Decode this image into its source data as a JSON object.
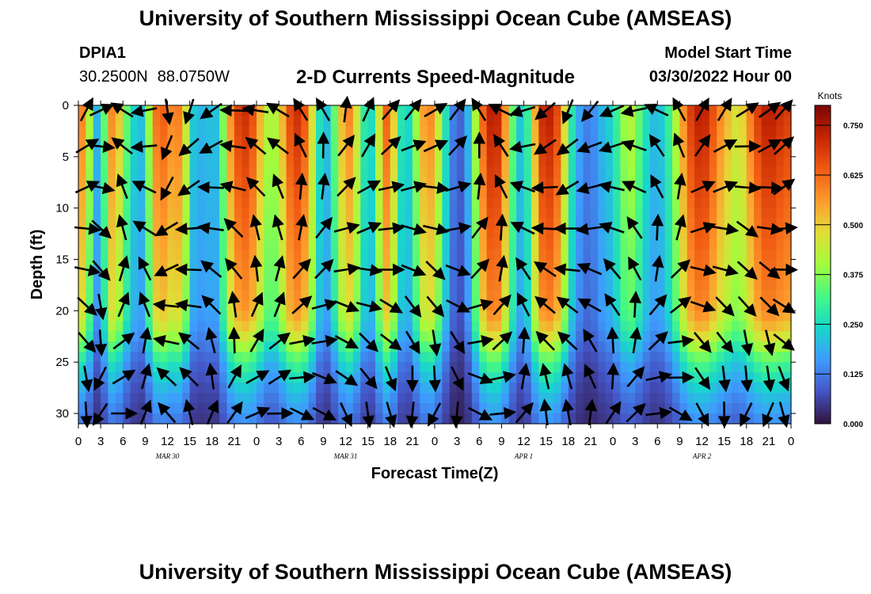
{
  "header": {
    "title": "University of Southern Mississippi Ocean Cube (AMSEAS)",
    "station_name": "DPIA1",
    "lat": "30.2500N",
    "lon": "88.0750W",
    "subtitle": "2-D Currents Speed-Magnitude",
    "model_start_label": "Model Start Time",
    "model_start_value": "03/30/2022 Hour 00"
  },
  "footer": {
    "title": "University of Southern Mississippi Ocean Cube (AMSEAS)"
  },
  "chart_data": {
    "type": "heatmap",
    "title": "2-D Currents Speed-Magnitude",
    "xlabel": "Forecast Time(Z)",
    "ylabel": "Depth (ft)",
    "x_tick_labels": [
      "0",
      "3",
      "6",
      "9",
      "12",
      "15",
      "18",
      "21",
      "0",
      "3",
      "6",
      "9",
      "12",
      "15",
      "18",
      "21",
      "0",
      "3",
      "6",
      "9",
      "12",
      "15",
      "18",
      "21",
      "0",
      "3",
      "6",
      "9",
      "12",
      "15",
      "18",
      "21",
      "0"
    ],
    "x_range_hours": [
      0,
      96
    ],
    "day_labels": [
      {
        "label": "MAR 30",
        "hour": 12
      },
      {
        "label": "MAR 31",
        "hour": 36
      },
      {
        "label": "APR 1",
        "hour": 60
      },
      {
        "label": "APR 2",
        "hour": 84
      }
    ],
    "y_ticks": [
      0,
      5,
      10,
      15,
      20,
      25,
      30
    ],
    "y_tick_labels": [
      "0",
      "5",
      "10",
      "15",
      "20",
      "25",
      "30"
    ],
    "ylim": [
      0,
      31
    ],
    "y_inverted": true,
    "colorbar": {
      "title": "Knots",
      "ticks": [
        0.0,
        0.125,
        0.25,
        0.375,
        0.5,
        0.625,
        0.75
      ],
      "tick_labels": [
        "0.000",
        "0.125",
        "0.250",
        "0.375",
        "0.500",
        "0.625",
        "0.750"
      ],
      "range": [
        0,
        0.8
      ]
    },
    "speed_profile_surface": [
      [
        0,
        0.6
      ],
      [
        1,
        0.58
      ],
      [
        2,
        0.25
      ],
      [
        3,
        0.15
      ],
      [
        4,
        0.55
      ],
      [
        5,
        0.62
      ],
      [
        6,
        0.4
      ],
      [
        7,
        0.3
      ],
      [
        8,
        0.18
      ],
      [
        9,
        0.25
      ],
      [
        10,
        0.55
      ],
      [
        11,
        0.68
      ],
      [
        12,
        0.6
      ],
      [
        13,
        0.58
      ],
      [
        14,
        0.62
      ],
      [
        15,
        0.3
      ],
      [
        16,
        0.15
      ],
      [
        17,
        0.25
      ],
      [
        18,
        0.18
      ],
      [
        19,
        0.25
      ],
      [
        20,
        0.5
      ],
      [
        21,
        0.65
      ],
      [
        22,
        0.72
      ],
      [
        23,
        0.7
      ],
      [
        24,
        0.62
      ],
      [
        25,
        0.45
      ],
      [
        26,
        0.4
      ],
      [
        27,
        0.45
      ],
      [
        28,
        0.62
      ],
      [
        29,
        0.72
      ],
      [
        30,
        0.7
      ],
      [
        31,
        0.6
      ],
      [
        32,
        0.35
      ],
      [
        33,
        0.18
      ],
      [
        34,
        0.25
      ],
      [
        35,
        0.45
      ],
      [
        36,
        0.6
      ],
      [
        37,
        0.58
      ],
      [
        38,
        0.35
      ],
      [
        39,
        0.22
      ],
      [
        40,
        0.3
      ],
      [
        41,
        0.62
      ],
      [
        42,
        0.65
      ],
      [
        43,
        0.35
      ],
      [
        44,
        0.2
      ],
      [
        45,
        0.3
      ],
      [
        46,
        0.5
      ],
      [
        47,
        0.62
      ],
      [
        48,
        0.55
      ],
      [
        49,
        0.35
      ],
      [
        50,
        0.18
      ],
      [
        51,
        0.08
      ],
      [
        52,
        0.12
      ],
      [
        53,
        0.28
      ],
      [
        54,
        0.55
      ],
      [
        55,
        0.72
      ],
      [
        56,
        0.75
      ],
      [
        57,
        0.7
      ],
      [
        58,
        0.45
      ],
      [
        59,
        0.25
      ],
      [
        60,
        0.2
      ],
      [
        61,
        0.4
      ],
      [
        62,
        0.68
      ],
      [
        63,
        0.75
      ],
      [
        64,
        0.72
      ],
      [
        65,
        0.62
      ],
      [
        66,
        0.35
      ],
      [
        67,
        0.2
      ],
      [
        68,
        0.15
      ],
      [
        69,
        0.12
      ],
      [
        70,
        0.18
      ],
      [
        71,
        0.22
      ],
      [
        72,
        0.25
      ],
      [
        73,
        0.35
      ],
      [
        74,
        0.45
      ],
      [
        75,
        0.4
      ],
      [
        76,
        0.3
      ],
      [
        77,
        0.22
      ],
      [
        78,
        0.2
      ],
      [
        79,
        0.25
      ],
      [
        80,
        0.35
      ],
      [
        81,
        0.5
      ],
      [
        82,
        0.65
      ],
      [
        83,
        0.72
      ],
      [
        84,
        0.75
      ],
      [
        85,
        0.7
      ],
      [
        86,
        0.62
      ],
      [
        87,
        0.55
      ],
      [
        88,
        0.5
      ],
      [
        89,
        0.45
      ],
      [
        90,
        0.55
      ],
      [
        91,
        0.65
      ],
      [
        92,
        0.72
      ],
      [
        93,
        0.75
      ],
      [
        94,
        0.72
      ],
      [
        95,
        0.7
      ],
      [
        96,
        0.68
      ]
    ],
    "depth_factor": [
      [
        0,
        1.0
      ],
      [
        5,
        0.95
      ],
      [
        10,
        0.9
      ],
      [
        15,
        0.85
      ],
      [
        20,
        0.8
      ],
      [
        22,
        0.7
      ],
      [
        25,
        0.45
      ],
      [
        28,
        0.3
      ],
      [
        31,
        0.2
      ]
    ],
    "vector_columns_hours": [
      0,
      3,
      6,
      9,
      12,
      15,
      18,
      21,
      24,
      27,
      30,
      33,
      36,
      39,
      42,
      45,
      48,
      51,
      54,
      57,
      60,
      63,
      66,
      69,
      72,
      75,
      78,
      81,
      84,
      87,
      90,
      93,
      96
    ],
    "vector_rows_depth": [
      0.5,
      4,
      8,
      12,
      16,
      19.5,
      23,
      26.5,
      30
    ],
    "vector_direction_deg_by_column": [
      40,
      70,
      300,
      250,
      180,
      200,
      230,
      260,
      285,
      300,
      320,
      340,
      10,
      20,
      30,
      45,
      60,
      30,
      340,
      300,
      250,
      220,
      210,
      220,
      240,
      270,
      300,
      330,
      20,
      40,
      60,
      50,
      30
    ]
  }
}
